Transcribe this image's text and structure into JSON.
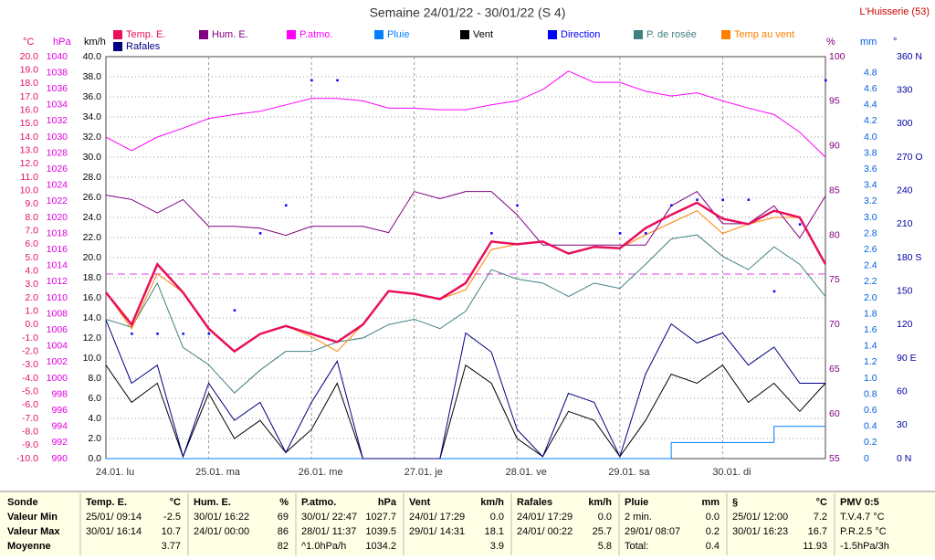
{
  "chart_data": {
    "type": "line",
    "title": "Semaine 24/01/22 - 30/01/22 (S 4)",
    "station": "L'Huisserie (53)",
    "x": [
      0,
      6,
      12,
      18,
      24,
      30,
      36,
      42,
      48,
      54,
      60,
      66,
      72,
      78,
      84,
      90,
      96,
      102,
      108,
      114,
      120,
      126,
      132,
      138,
      144,
      150,
      156,
      162,
      168
    ],
    "xlim": [
      0,
      168
    ],
    "xticks": [
      {
        "value": 0,
        "label": "24.01. lu"
      },
      {
        "value": 24,
        "label": "25.01. ma"
      },
      {
        "value": 48,
        "label": "26.01. me"
      },
      {
        "value": 72,
        "label": "27.01. je"
      },
      {
        "value": 96,
        "label": "28.01. ve"
      },
      {
        "value": 120,
        "label": "29.01. sa"
      },
      {
        "value": 144,
        "label": "30.01. di"
      }
    ],
    "grid": true,
    "axes": {
      "temp": {
        "label": "°C",
        "color": "#e0106a",
        "lim": [
          -10,
          20
        ],
        "ticks": [
          {
            "value": -10,
            "label": "-10.0"
          },
          {
            "value": -9,
            "label": "-9.0"
          },
          {
            "value": -8,
            "label": "-8.0"
          },
          {
            "value": -7,
            "label": "-7.0"
          },
          {
            "value": -6,
            "label": "-6.0"
          },
          {
            "value": -5,
            "label": "-5.0"
          },
          {
            "value": -4,
            "label": "-4.0"
          },
          {
            "value": -3,
            "label": "-3.0"
          },
          {
            "value": -2,
            "label": "-2.0"
          },
          {
            "value": -1,
            "label": "-1.0"
          },
          {
            "value": 0,
            "label": "0.0"
          },
          {
            "value": 1,
            "label": "1.0"
          },
          {
            "value": 2,
            "label": "2.0"
          },
          {
            "value": 3,
            "label": "3.0"
          },
          {
            "value": 4,
            "label": "4.0"
          },
          {
            "value": 5,
            "label": "5.0"
          },
          {
            "value": 6,
            "label": "6.0"
          },
          {
            "value": 7,
            "label": "7.0"
          },
          {
            "value": 8,
            "label": "8.0"
          },
          {
            "value": 9,
            "label": "9.0"
          },
          {
            "value": 10,
            "label": "10.0"
          },
          {
            "value": 11,
            "label": "11.0"
          },
          {
            "value": 12,
            "label": "12.0"
          },
          {
            "value": 13,
            "label": "13.0"
          },
          {
            "value": 14,
            "label": "14.0"
          },
          {
            "value": 15,
            "label": "15.0"
          },
          {
            "value": 16,
            "label": "16.0"
          },
          {
            "value": 17,
            "label": "17.0"
          },
          {
            "value": 18,
            "label": "18.0"
          },
          {
            "value": 19,
            "label": "19.0"
          },
          {
            "value": 20,
            "label": "20.0"
          }
        ]
      },
      "hpa": {
        "label": "hPa",
        "color": "#e000e0",
        "lim": [
          990,
          1040
        ],
        "ticks": [
          990,
          992,
          994,
          996,
          998,
          1000,
          1002,
          1004,
          1006,
          1008,
          1010,
          1012,
          1014,
          1016,
          1018,
          1020,
          1022,
          1024,
          1026,
          1028,
          1030,
          1032,
          1034,
          1036,
          1038,
          1040
        ]
      },
      "wind": {
        "label": "km/h",
        "color": "#000000",
        "lim": [
          0,
          40
        ],
        "ticks": [
          {
            "value": 0,
            "label": "0.0"
          },
          {
            "value": 2,
            "label": "2.0"
          },
          {
            "value": 4,
            "label": "4.0"
          },
          {
            "value": 6,
            "label": "6.0"
          },
          {
            "value": 8,
            "label": "8.0"
          },
          {
            "value": 10,
            "label": "10.0"
          },
          {
            "value": 12,
            "label": "12.0"
          },
          {
            "value": 14,
            "label": "14.0"
          },
          {
            "value": 16,
            "label": "16.0"
          },
          {
            "value": 18,
            "label": "18.0"
          },
          {
            "value": 20,
            "label": "20.0"
          },
          {
            "value": 22,
            "label": "22.0"
          },
          {
            "value": 24,
            "label": "24.0"
          },
          {
            "value": 26,
            "label": "26.0"
          },
          {
            "value": 28,
            "label": "28.0"
          },
          {
            "value": 30,
            "label": "30.0"
          },
          {
            "value": 32,
            "label": "32.0"
          },
          {
            "value": 34,
            "label": "34.0"
          },
          {
            "value": 36,
            "label": "36.0"
          },
          {
            "value": 38,
            "label": "38.0"
          },
          {
            "value": 40,
            "label": "40.0"
          }
        ]
      },
      "hum": {
        "label": "%",
        "color": "#800080",
        "lim": [
          55,
          100
        ],
        "ticks": [
          55,
          60,
          65,
          70,
          75,
          80,
          85,
          90,
          95,
          100
        ]
      },
      "rain": {
        "label": "mm",
        "color": "#0060e0",
        "lim": [
          0,
          5
        ],
        "ticks": [
          0,
          0.2,
          0.4,
          0.6,
          0.8,
          {
            "value": 1,
            "label": "1.0"
          },
          1.2,
          1.4,
          1.6,
          1.8,
          {
            "value": 2,
            "label": "2.0"
          },
          2.2,
          2.4,
          2.6,
          2.8,
          {
            "value": 3,
            "label": "3.0"
          },
          3.2,
          3.4,
          3.6,
          3.8,
          {
            "value": 4,
            "label": "4.0"
          },
          4.2,
          4.4,
          4.6,
          4.8
        ]
      },
      "dir": {
        "label": "°",
        "color": "#0000a0",
        "lim": [
          0,
          360
        ],
        "ticks": [
          {
            "value": 0,
            "label": "0 N"
          },
          30,
          60,
          {
            "value": 90,
            "label": "90 E"
          },
          120,
          150,
          {
            "value": 180,
            "label": "180 S"
          },
          210,
          240,
          {
            "value": 270,
            "label": "270 O"
          },
          300,
          330,
          {
            "value": 360,
            "label": "360 N"
          }
        ]
      }
    },
    "series": [
      {
        "name": "Temp. E.",
        "color": "#e8105a",
        "axis": "temp",
        "width": 2.5,
        "values": [
          2.4,
          0.0,
          4.5,
          2.4,
          -0.3,
          -2.0,
          -0.7,
          -0.1,
          -0.7,
          -1.3,
          0.0,
          2.5,
          2.3,
          1.9,
          3.1,
          6.2,
          6.0,
          6.2,
          5.3,
          5.8,
          5.7,
          7.2,
          8.2,
          9.1,
          7.9,
          7.5,
          8.5,
          8.0,
          4.5
        ]
      },
      {
        "name": "Hum. E.",
        "color": "#800080",
        "axis": "hum",
        "values": [
          84.5,
          84,
          82.5,
          84,
          81,
          81,
          80.8,
          80,
          81,
          81,
          81,
          80.3,
          84.9,
          84.1,
          84.9,
          84.9,
          82.3,
          78.9,
          78.9,
          78.9,
          78.9,
          78.9,
          83.3,
          84.9,
          81.3,
          81.3,
          83.3,
          79.7,
          84.4
        ]
      },
      {
        "name": "P.atmo.",
        "color": "#ff00ff",
        "axis": "hpa",
        "values": [
          1030,
          1028.3,
          1030,
          1031.1,
          1032.3,
          1032.8,
          1033.2,
          1034,
          1034.8,
          1034.8,
          1034.5,
          1033.6,
          1033.6,
          1033.4,
          1033.4,
          1034,
          1034.5,
          1035.9,
          1038.2,
          1036.8,
          1036.8,
          1035.7,
          1035.1,
          1035.5,
          1034.5,
          1033.6,
          1032.8,
          1030.6,
          1027.5
        ]
      },
      {
        "name": "Pluie",
        "color": "#0080ff",
        "axis": "rain",
        "draw": "step",
        "values": [
          0,
          0,
          0,
          0,
          0,
          0,
          0,
          0,
          0,
          0,
          0,
          0,
          0,
          0,
          0,
          0,
          0,
          0,
          0,
          0,
          0,
          0,
          0.2,
          0.2,
          0.2,
          0.2,
          0.4,
          0.4,
          0.4
        ]
      },
      {
        "name": "Vent",
        "color": "#000000",
        "axis": "wind",
        "values": [
          9.3,
          5.6,
          7.5,
          0.2,
          6.5,
          2,
          3.8,
          0.6,
          2.9,
          7.5,
          0,
          0,
          0,
          0,
          9.3,
          7.5,
          2,
          0.2,
          4.7,
          3.8,
          0.2,
          3.8,
          8.4,
          7.5,
          9.3,
          5.6,
          7.5,
          4.7,
          7.5
        ]
      },
      {
        "name": "Direction",
        "color": "#0000ff",
        "axis": "dir",
        "draw": "dots",
        "values": [
          null,
          112,
          112,
          112,
          112,
          133,
          202,
          227,
          339,
          339,
          null,
          null,
          null,
          null,
          null,
          202,
          227,
          null,
          null,
          null,
          202,
          202,
          227,
          232,
          232,
          232,
          150,
          210,
          339
        ]
      },
      {
        "name": "P. de rosée",
        "color": "#408080",
        "axis": "temp",
        "values": [
          0.4,
          -0.2,
          3.1,
          -1.7,
          -3.0,
          -5.1,
          -3.4,
          -2.0,
          -2.0,
          -1.3,
          -1.0,
          0.0,
          0.4,
          -0.3,
          1.0,
          4.1,
          3.4,
          3.1,
          2.1,
          3.1,
          2.7,
          4.5,
          6.4,
          6.7,
          5.1,
          4.1,
          5.8,
          4.5,
          2.1
        ]
      },
      {
        "name": "Temp au vent",
        "color": "#ff8000",
        "axis": "temp",
        "values": [
          2.4,
          -0.3,
          3.8,
          2.4,
          -0.3,
          -2.0,
          -0.7,
          -0.1,
          -0.9,
          -2.0,
          0.0,
          2.5,
          2.3,
          1.9,
          2.6,
          5.6,
          6.0,
          6.2,
          5.3,
          5.8,
          5.7,
          6.7,
          7.6,
          8.5,
          6.8,
          7.5,
          8.0,
          8.0,
          4.5
        ]
      },
      {
        "name": "Rafales",
        "color": "#000080",
        "axis": "wind",
        "values": [
          13.8,
          7.5,
          9.3,
          0.2,
          7.5,
          3.8,
          5.6,
          0.6,
          5.6,
          9.7,
          0,
          0,
          0,
          0,
          12.5,
          10.6,
          2.9,
          0.2,
          6.5,
          5.6,
          0.2,
          8.4,
          13.4,
          11.5,
          12.5,
          9.3,
          11.1,
          7.5,
          7.5
        ]
      }
    ]
  },
  "table": {
    "columns": [
      {
        "header": "Sonde",
        "rows": [
          {
            "left": "Valeur Min"
          },
          {
            "left": "Valeur Max"
          },
          {
            "left": "Moyenne"
          }
        ]
      },
      {
        "header": "Temp. E.",
        "unit": "°C",
        "rows": [
          {
            "left": "25/01/ 09:14",
            "right": "-2.5"
          },
          {
            "left": "30/01/ 16:14",
            "right": "10.7"
          },
          {
            "right": 3.77
          }
        ]
      },
      {
        "header": "Hum. E.",
        "unit": "%",
        "rows": [
          {
            "left": "30/01/ 16:22",
            "right": "69"
          },
          {
            "left": "24/01/ 00:00",
            "right": "86"
          },
          {
            "right": "82"
          }
        ]
      },
      {
        "header": "P.atmo.",
        "unit": "hPa",
        "rows": [
          {
            "left": "30/01/ 22:47",
            "right": "1027.7"
          },
          {
            "left": "28/01/ 11:37",
            "right": "1039.5"
          },
          {
            "left": "^1.0hPa/h",
            "right": "1034.2"
          }
        ]
      },
      {
        "header": "Vent",
        "unit": "km/h",
        "rows": [
          {
            "left": "24/01/ 17:29",
            "right": "0.0"
          },
          {
            "left": "29/01/ 14:31",
            "right": "18.1"
          },
          {
            "right": "3.9"
          }
        ]
      },
      {
        "header": "Rafales",
        "unit": "km/h",
        "rows": [
          {
            "left": "24/01/ 17:29",
            "right": "0.0"
          },
          {
            "left": "24/01/ 00:22",
            "right": "25.7"
          },
          {
            "right": "5.8"
          }
        ]
      },
      {
        "header": "Pluie",
        "unit": "mm",
        "rows": [
          {
            "left": "2 min.",
            "right": "0.0"
          },
          {
            "left": "29/01/ 08:07",
            "right": "0.2"
          },
          {
            "left": "Total:",
            "right": "0.4"
          }
        ]
      },
      {
        "header": "§",
        "unit": "°C",
        "rows": [
          {
            "left": "25/01/ 12:00",
            "right": "7.2"
          },
          {
            "left": "30/01/ 16:23",
            "right": "16.7"
          },
          {
            "right": "11.93"
          }
        ]
      },
      {
        "header": "PMV 0:5",
        "rows": [
          {
            "left": "T.V.4.7 °C"
          },
          {
            "left": "P.R.2.5 °C"
          },
          {
            "left": "-1.5hPa/3h"
          }
        ]
      }
    ]
  }
}
